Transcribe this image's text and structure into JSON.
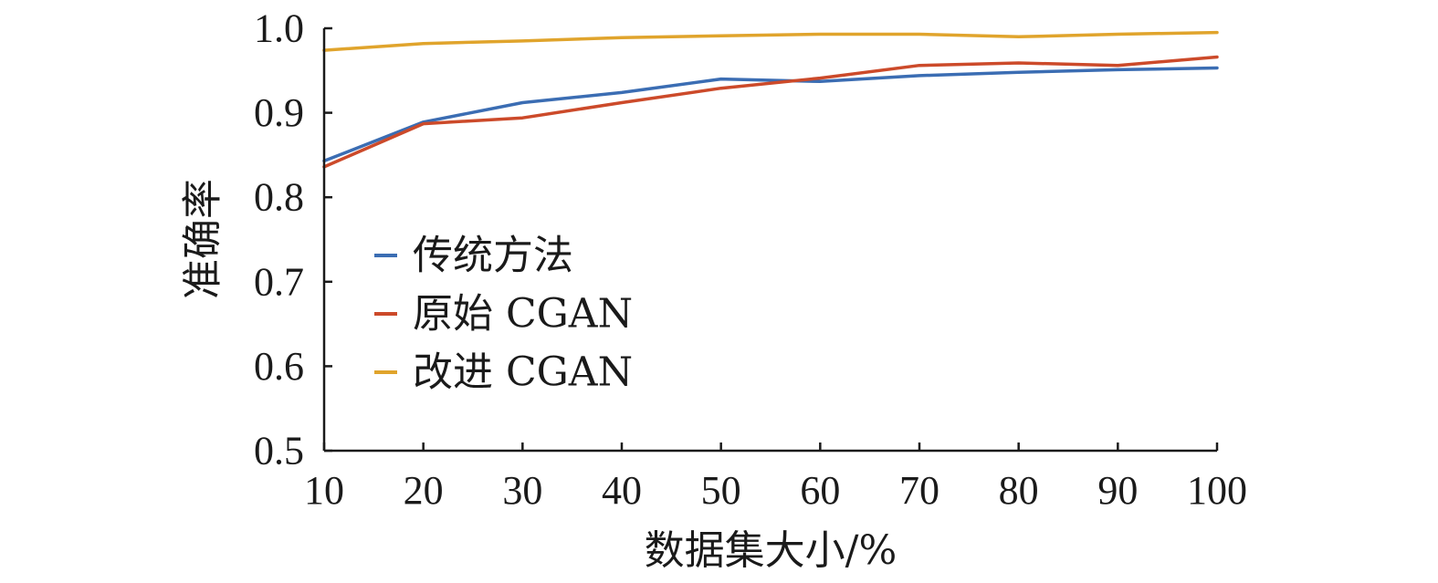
{
  "chart_data": {
    "type": "line",
    "xlabel": "数据集大小/%",
    "ylabel": "准确率",
    "x": [
      10,
      20,
      30,
      40,
      50,
      60,
      70,
      80,
      90,
      100
    ],
    "xticks": [
      "10",
      "20",
      "30",
      "40",
      "50",
      "60",
      "70",
      "80",
      "90",
      "100"
    ],
    "xlim": [
      10,
      100
    ],
    "yticks": [
      "0.5",
      "0.6",
      "0.7",
      "0.8",
      "0.9",
      "1.0"
    ],
    "ylim": [
      0.5,
      1.0
    ],
    "grid": false,
    "legend_position": "left",
    "series": [
      {
        "name": "传统方法",
        "color": "#3b6db3",
        "values": [
          0.843,
          0.889,
          0.912,
          0.924,
          0.94,
          0.937,
          0.944,
          0.948,
          0.951,
          0.953
        ]
      },
      {
        "name": "原始 CGAN",
        "color": "#cc4a2a",
        "values": [
          0.836,
          0.887,
          0.894,
          0.912,
          0.929,
          0.941,
          0.956,
          0.959,
          0.956,
          0.966
        ]
      },
      {
        "name": "改进 CGAN",
        "color": "#e0a42c",
        "values": [
          0.974,
          0.982,
          0.985,
          0.989,
          0.991,
          0.993,
          0.993,
          0.99,
          0.993,
          0.995
        ]
      }
    ]
  }
}
